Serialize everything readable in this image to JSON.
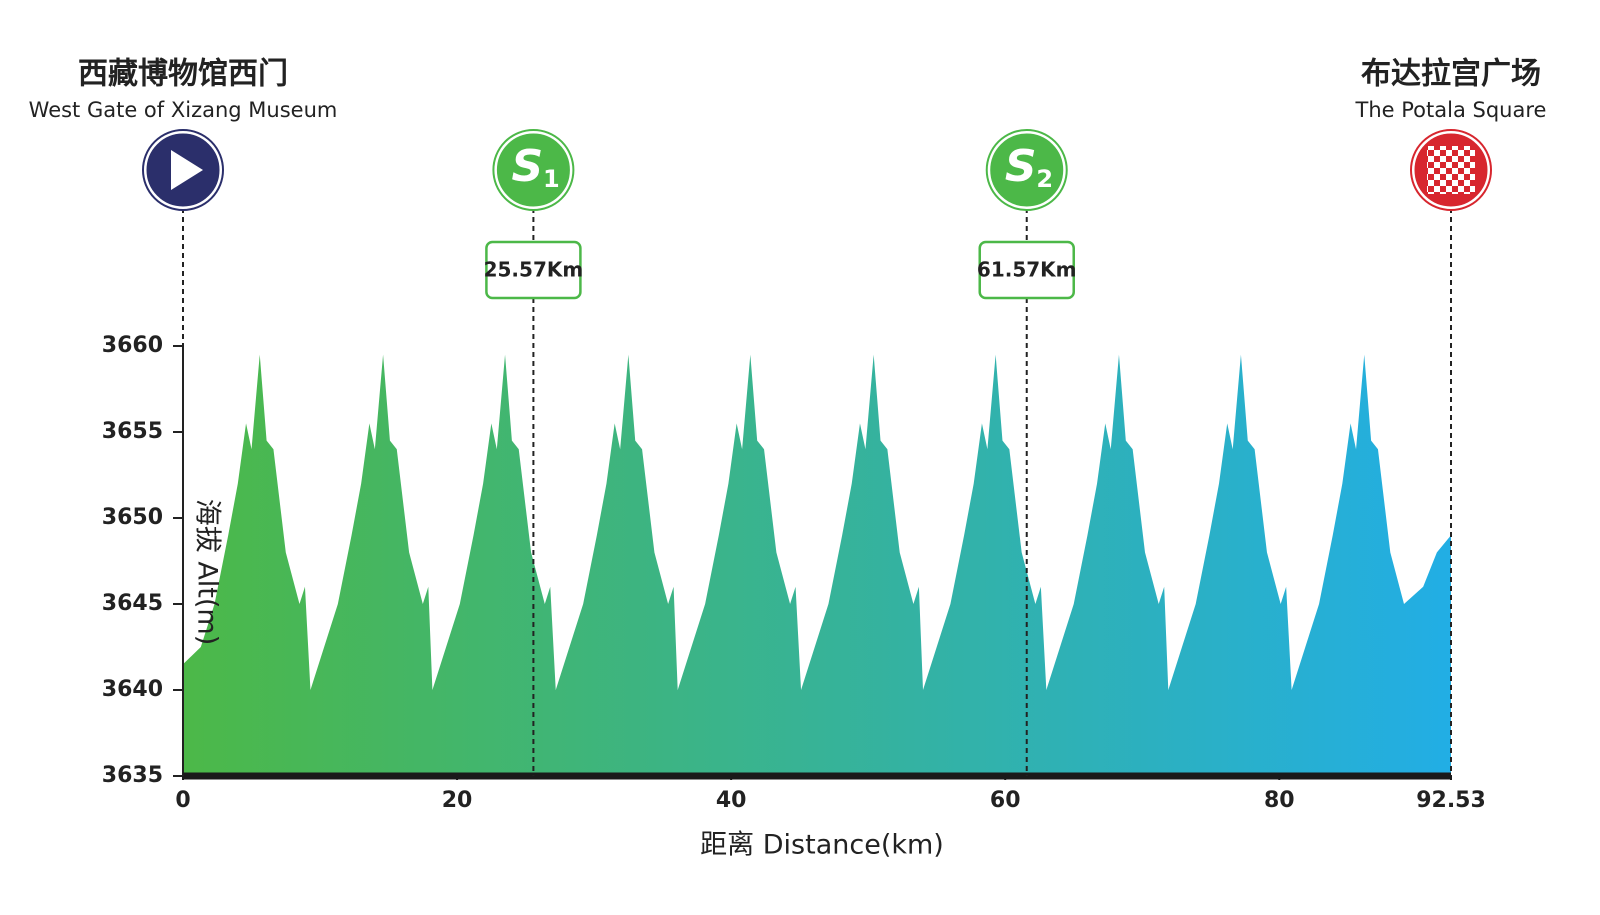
{
  "chart_data": {
    "type": "area",
    "x_label": "距离 Distance(km)",
    "y_label": "海拔 Alt(m)",
    "gradient": [
      "#4cb848",
      "#22aee5"
    ],
    "xlim": [
      0,
      92.53
    ],
    "xticks": [
      0,
      20,
      40,
      60,
      80,
      92.53
    ],
    "ylim": [
      3635,
      3660
    ],
    "yticks": [
      3635,
      3640,
      3645,
      3650,
      3655,
      3660
    ],
    "start": {
      "name_zh": "西藏博物馆西门",
      "name_en": "West Gate of Xizang Museum",
      "color": "#2b2f6b"
    },
    "finish": {
      "name_zh": "布达拉宫广场",
      "name_en": "The Potala Square",
      "color": "#d7262e"
    },
    "sprints": [
      {
        "letter": "S",
        "number": "1",
        "x": 25.57,
        "label": "25.57Km",
        "color": "#4cb848"
      },
      {
        "letter": "S",
        "number": "2",
        "x": 61.57,
        "label": "61.57Km",
        "color": "#4cb848"
      }
    ],
    "x": [
      0,
      1.3,
      2.3,
      3.3,
      4.0,
      4.6,
      5.0,
      5.6,
      6.1,
      6.6,
      7.5,
      8.5,
      8.9,
      9.3,
      10.3,
      11.3,
      12.3,
      13.0,
      13.6,
      14.0,
      14.6,
      15.1,
      15.6,
      16.5,
      17.5,
      17.9,
      18.2,
      19.2,
      20.2,
      21.2,
      21.9,
      22.5,
      22.9,
      23.5,
      24.0,
      24.5,
      25.4,
      26.4,
      26.8,
      27.2,
      28.2,
      29.2,
      30.2,
      30.9,
      31.5,
      31.9,
      32.5,
      33.0,
      33.5,
      34.4,
      35.4,
      35.8,
      36.1,
      37.1,
      38.1,
      39.1,
      39.8,
      40.4,
      40.8,
      41.4,
      41.9,
      42.4,
      43.3,
      44.3,
      44.7,
      45.1,
      46.1,
      47.1,
      48.1,
      48.8,
      49.4,
      49.8,
      50.4,
      50.9,
      51.4,
      52.3,
      53.3,
      53.7,
      54.0,
      55.0,
      56.0,
      57.0,
      57.7,
      58.3,
      58.7,
      59.3,
      59.8,
      60.3,
      61.2,
      62.2,
      62.6,
      63.0,
      64.0,
      65.0,
      66.0,
      66.7,
      67.3,
      67.7,
      68.3,
      68.8,
      69.3,
      70.2,
      71.2,
      71.6,
      71.9,
      72.9,
      73.9,
      74.9,
      75.6,
      76.2,
      76.6,
      77.2,
      77.7,
      78.2,
      79.1,
      80.1,
      80.5,
      80.9,
      81.9,
      82.9,
      83.9,
      84.6,
      85.2,
      85.6,
      86.2,
      86.7,
      87.2,
      88.1,
      89.1,
      90.5,
      91.5,
      92.53
    ],
    "values": [
      3641.5,
      3642.5,
      3645,
      3649,
      3652,
      3655.5,
      3654,
      3659.5,
      3654.5,
      3654,
      3648,
      3645,
      3646,
      3640,
      3642.5,
      3645,
      3649,
      3652,
      3655.5,
      3654,
      3659.5,
      3654.5,
      3654,
      3648,
      3645,
      3646,
      3640,
      3642.5,
      3645,
      3649,
      3652,
      3655.5,
      3654,
      3659.5,
      3654.5,
      3654,
      3648,
      3645,
      3646,
      3640,
      3642.5,
      3645,
      3649,
      3652,
      3655.5,
      3654,
      3659.5,
      3654.5,
      3654,
      3648,
      3645,
      3646,
      3640,
      3642.5,
      3645,
      3649,
      3652,
      3655.5,
      3654,
      3659.5,
      3654.5,
      3654,
      3648,
      3645,
      3646,
      3640,
      3642.5,
      3645,
      3649,
      3652,
      3655.5,
      3654,
      3659.5,
      3654.5,
      3654,
      3648,
      3645,
      3646,
      3640,
      3642.5,
      3645,
      3649,
      3652,
      3655.5,
      3654,
      3659.5,
      3654.5,
      3654,
      3648,
      3645,
      3646,
      3640,
      3642.5,
      3645,
      3649,
      3652,
      3655.5,
      3654,
      3659.5,
      3654.5,
      3654,
      3648,
      3645,
      3646,
      3640,
      3642.5,
      3645,
      3649,
      3652,
      3655.5,
      3654,
      3659.5,
      3654.5,
      3654,
      3648,
      3645,
      3646,
      3640,
      3642.5,
      3645,
      3649,
      3652,
      3655.5,
      3654,
      3659.5,
      3654.5,
      3654,
      3648,
      3645,
      3646,
      3648,
      3649
    ]
  }
}
